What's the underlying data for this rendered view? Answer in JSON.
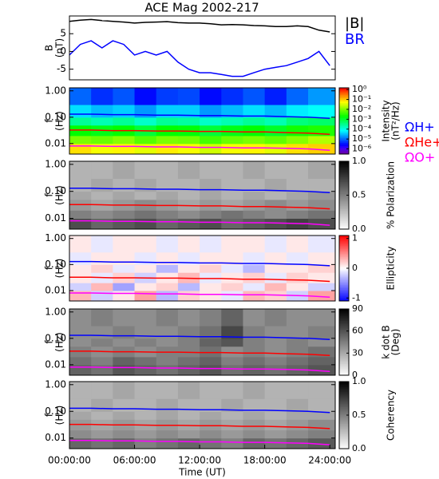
{
  "chart_data": [
    {
      "type": "line",
      "title": "ACE Mag 2002-217",
      "ylabel": [
        "B",
        "(nT)"
      ],
      "x": [
        0,
        1,
        2,
        3,
        4,
        5,
        6,
        7,
        8,
        9,
        10,
        11,
        12,
        13,
        14,
        15,
        16,
        17,
        18,
        19,
        20,
        21,
        22,
        23,
        24
      ],
      "xlim": [
        0,
        24.5
      ],
      "ylim": [
        -8,
        10
      ],
      "yticks": [
        -5,
        0,
        5
      ],
      "series": [
        {
          "name": "|B|",
          "color": "#000000",
          "values": [
            8.5,
            8.8,
            9,
            8.7,
            8.5,
            8.3,
            8,
            8.2,
            8.3,
            8.4,
            8.1,
            8,
            8,
            7.8,
            7.5,
            7.6,
            7.5,
            7.3,
            7.2,
            7,
            7,
            7.2,
            7,
            6,
            5.5
          ]
        },
        {
          "name": "BR",
          "color": "#0000ff",
          "values": [
            -1,
            2,
            3,
            1,
            3,
            2,
            -1,
            0,
            -1,
            0,
            -3,
            -5,
            -6,
            -6,
            -6.5,
            -7,
            -7,
            -6,
            -5,
            -4.5,
            -4,
            -3,
            -2,
            0,
            -4
          ]
        }
      ]
    },
    {
      "type": "heatmap",
      "ylabel": [
        "f",
        "(Hz)"
      ],
      "zlabel": [
        "Intensity",
        "(nT²/Hz)"
      ],
      "colormap": "rainbow",
      "zlog": true,
      "ylog": true,
      "xlim": [
        0,
        24.5
      ],
      "ylim": [
        0.004,
        1.3
      ],
      "yticks": [
        {
          "value": 1,
          "label": "1.00"
        },
        {
          "value": 0.1,
          "label": "0.10"
        },
        {
          "value": 0.01,
          "label": "0.01"
        }
      ],
      "zlim": [
        3e-07,
        1.5
      ],
      "zticks": [
        {
          "value": 1,
          "label": "10⁰"
        },
        {
          "value": 0.1,
          "label": "10⁻¹"
        },
        {
          "value": 0.01,
          "label": "10⁻²"
        },
        {
          "value": 0.001,
          "label": "10⁻³"
        },
        {
          "value": 0.0001,
          "label": "10⁻⁴"
        },
        {
          "value": 1e-05,
          "label": "10⁻⁵"
        },
        {
          "value": 1e-06,
          "label": "10⁻⁶"
        }
      ],
      "xbins": [
        0,
        2,
        4,
        6,
        8,
        10,
        12,
        14,
        16,
        18,
        20,
        22,
        24,
        24.5
      ],
      "ybins": [
        0.004,
        0.01,
        0.02,
        0.05,
        0.1,
        0.3,
        1.3
      ],
      "z": [
        [
          0.08,
          0.05,
          0.06,
          0.04,
          0.07,
          0.05,
          0.03,
          0.05,
          0.06,
          0.04,
          0.08,
          0.1,
          0.1
        ],
        [
          0.01,
          0.008,
          0.012,
          0.006,
          0.01,
          0.009,
          0.005,
          0.008,
          0.01,
          0.007,
          0.012,
          0.02,
          0.02
        ],
        [
          0.002,
          0.0015,
          0.002,
          0.001,
          0.002,
          0.0018,
          0.001,
          0.0015,
          0.002,
          0.0012,
          0.0025,
          0.003,
          0.003
        ],
        [
          0.0003,
          0.0002,
          0.0003,
          0.00015,
          0.0003,
          0.00025,
          0.00015,
          0.0002,
          0.0003,
          0.0002,
          0.0004,
          0.0005,
          0.0005
        ],
        [
          5e-05,
          3e-05,
          4e-05,
          2e-05,
          4e-05,
          4e-05,
          2e-05,
          3e-05,
          5e-05,
          3e-05,
          6e-05,
          8e-05,
          8e-05
        ],
        [
          1e-05,
          5e-06,
          8e-06,
          3e-06,
          6e-06,
          7e-06,
          3e-06,
          5e-06,
          8e-06,
          4e-06,
          1e-05,
          2e-05,
          2e-05
        ]
      ],
      "x": [
        0,
        2,
        4,
        6,
        8,
        10,
        12,
        14,
        16,
        18,
        20,
        22,
        24
      ],
      "series": [
        {
          "name": "ΩH+",
          "color": "#0000ff",
          "values": [
            0.13,
            0.13,
            0.125,
            0.125,
            0.12,
            0.12,
            0.115,
            0.115,
            0.11,
            0.11,
            0.105,
            0.1,
            0.09
          ]
        },
        {
          "name": "ΩHe+",
          "color": "#ff0000",
          "values": [
            0.0325,
            0.0325,
            0.031,
            0.031,
            0.03,
            0.03,
            0.029,
            0.029,
            0.0275,
            0.0275,
            0.026,
            0.025,
            0.0225
          ]
        },
        {
          "name": "ΩO+",
          "color": "#ff00ff",
          "values": [
            0.0081,
            0.0081,
            0.0078,
            0.0078,
            0.0075,
            0.0075,
            0.0072,
            0.0072,
            0.0069,
            0.0069,
            0.0066,
            0.0063,
            0.0056
          ]
        }
      ]
    },
    {
      "type": "heatmap",
      "ylabel": [
        "f",
        "(Hz)"
      ],
      "zlabel": [
        "% Polarization"
      ],
      "colormap": "gray",
      "ylog": true,
      "xlim": [
        0,
        24.5
      ],
      "ylim": [
        0.004,
        1.3
      ],
      "yticks": [
        {
          "value": 1,
          "label": "1.00"
        },
        {
          "value": 0.1,
          "label": "0.10"
        },
        {
          "value": 0.01,
          "label": "0.01"
        }
      ],
      "zlim": [
        0,
        1
      ],
      "zticks": [
        {
          "value": 0,
          "label": "0.0"
        },
        {
          "value": 0.5,
          "label": "0.5"
        },
        {
          "value": 1,
          "label": "1.0"
        }
      ],
      "xbins": [
        0,
        2,
        4,
        6,
        8,
        10,
        12,
        14,
        16,
        18,
        20,
        22,
        24,
        24.5
      ],
      "ybins": [
        0.004,
        0.01,
        0.02,
        0.05,
        0.1,
        0.3,
        1.3
      ],
      "z": [
        [
          0.7,
          0.6,
          0.65,
          0.7,
          0.6,
          0.65,
          0.7,
          0.6,
          0.65,
          0.7,
          0.75,
          0.7,
          0.7
        ],
        [
          0.5,
          0.45,
          0.5,
          0.55,
          0.5,
          0.45,
          0.5,
          0.55,
          0.5,
          0.45,
          0.5,
          0.55,
          0.55
        ],
        [
          0.4,
          0.35,
          0.4,
          0.45,
          0.4,
          0.35,
          0.4,
          0.35,
          0.4,
          0.45,
          0.4,
          0.45,
          0.45
        ],
        [
          0.35,
          0.3,
          0.35,
          0.3,
          0.35,
          0.3,
          0.35,
          0.3,
          0.35,
          0.3,
          0.35,
          0.4,
          0.4
        ],
        [
          0.3,
          0.35,
          0.3,
          0.35,
          0.3,
          0.3,
          0.35,
          0.3,
          0.3,
          0.35,
          0.3,
          0.3,
          0.3
        ],
        [
          0.3,
          0.3,
          0.35,
          0.3,
          0.3,
          0.35,
          0.3,
          0.3,
          0.35,
          0.3,
          0.3,
          0.35,
          0.35
        ]
      ]
    },
    {
      "type": "heatmap",
      "ylabel": [
        "f",
        "(Hz)"
      ],
      "zlabel": [
        "Ellipticity"
      ],
      "colormap": "bwr",
      "ylog": true,
      "xlim": [
        0,
        24.5
      ],
      "ylim": [
        0.004,
        1.3
      ],
      "yticks": [
        {
          "value": 1,
          "label": "1.00"
        },
        {
          "value": 0.1,
          "label": "0.10"
        },
        {
          "value": 0.01,
          "label": "0.01"
        }
      ],
      "zlim": [
        -1.1,
        1.1
      ],
      "zticks": [
        -1,
        0,
        1
      ],
      "xbins": [
        0,
        2,
        4,
        6,
        8,
        10,
        12,
        14,
        16,
        18,
        20,
        22,
        24,
        24.5
      ],
      "ybins": [
        0.004,
        0.01,
        0.02,
        0.05,
        0.1,
        0.3,
        1.3
      ],
      "z": [
        [
          0.3,
          -0.2,
          0.1,
          0.4,
          -0.3,
          0.2,
          0.1,
          -0.1,
          0.3,
          0.2,
          -0.2,
          0.4,
          0.4
        ],
        [
          -0.2,
          0.3,
          -0.4,
          0.1,
          0.2,
          -0.3,
          0.1,
          0.2,
          -0.1,
          0.3,
          0.1,
          -0.2,
          -0.2
        ],
        [
          0.1,
          -0.1,
          0.2,
          -0.2,
          0.1,
          0.3,
          -0.1,
          0.1,
          0.2,
          -0.1,
          0.2,
          0.1,
          0.1
        ],
        [
          0.1,
          0.2,
          -0.1,
          0.1,
          -0.3,
          0.1,
          0.2,
          -0.1,
          -0.3,
          0.1,
          0.1,
          0.2,
          0.2
        ],
        [
          -0.1,
          0.1,
          0.1,
          -0.1,
          0.1,
          -0.1,
          0.1,
          0.1,
          -0.1,
          0.1,
          -0.1,
          0.1,
          0.1
        ],
        [
          0.1,
          -0.1,
          0.1,
          0.1,
          -0.1,
          0.1,
          -0.1,
          0.1,
          0.1,
          -0.1,
          0.1,
          -0.1,
          -0.1
        ]
      ]
    },
    {
      "type": "heatmap",
      "ylabel": [
        "f",
        "(Hz)"
      ],
      "zlabel": [
        "k dot B",
        "(Deg)"
      ],
      "colormap": "gray",
      "ylog": true,
      "xlim": [
        0,
        24.5
      ],
      "ylim": [
        0.004,
        1.3
      ],
      "yticks": [
        {
          "value": 1,
          "label": "1.00"
        },
        {
          "value": 0.1,
          "label": "0.10"
        },
        {
          "value": 0.01,
          "label": "0.01"
        }
      ],
      "zlim": [
        0,
        90
      ],
      "zticks": [
        0,
        30,
        60,
        90
      ],
      "xbins": [
        0,
        2,
        4,
        6,
        8,
        10,
        12,
        14,
        16,
        18,
        20,
        22,
        24,
        24.5
      ],
      "ybins": [
        0.004,
        0.01,
        0.02,
        0.05,
        0.1,
        0.3,
        1.3
      ],
      "z": [
        [
          55,
          50,
          60,
          55,
          50,
          55,
          60,
          50,
          55,
          50,
          55,
          60,
          60
        ],
        [
          50,
          45,
          55,
          50,
          45,
          50,
          55,
          45,
          50,
          45,
          50,
          55,
          55
        ],
        [
          45,
          40,
          45,
          40,
          45,
          45,
          50,
          40,
          45,
          40,
          45,
          50,
          50
        ],
        [
          40,
          45,
          40,
          45,
          40,
          45,
          55,
          60,
          45,
          40,
          45,
          40,
          40
        ],
        [
          40,
          40,
          45,
          40,
          40,
          45,
          50,
          65,
          45,
          40,
          40,
          45,
          45
        ],
        [
          40,
          45,
          40,
          40,
          45,
          40,
          45,
          55,
          40,
          45,
          40,
          40,
          40
        ]
      ]
    },
    {
      "type": "heatmap",
      "ylabel": [
        "f",
        "(Hz)"
      ],
      "zlabel": [
        "Coherency"
      ],
      "colormap": "gray",
      "ylog": true,
      "xlim": [
        0,
        24.5
      ],
      "ylim": [
        0.004,
        1.3
      ],
      "yticks": [
        {
          "value": 1,
          "label": "1.00"
        },
        {
          "value": 0.1,
          "label": "0.10"
        },
        {
          "value": 0.01,
          "label": "0.01"
        }
      ],
      "zlim": [
        0,
        1
      ],
      "zticks": [
        {
          "value": 0,
          "label": "0.0"
        },
        {
          "value": 0.5,
          "label": "0.5"
        },
        {
          "value": 1,
          "label": "1.0"
        }
      ],
      "xbins": [
        0,
        2,
        4,
        6,
        8,
        10,
        12,
        14,
        16,
        18,
        20,
        22,
        24,
        24.5
      ],
      "ybins": [
        0.004,
        0.01,
        0.02,
        0.05,
        0.1,
        0.3,
        1.3
      ],
      "z": [
        [
          0.6,
          0.55,
          0.6,
          0.5,
          0.55,
          0.6,
          0.55,
          0.5,
          0.6,
          0.55,
          0.6,
          0.65,
          0.65
        ],
        [
          0.45,
          0.4,
          0.45,
          0.4,
          0.45,
          0.4,
          0.45,
          0.4,
          0.45,
          0.4,
          0.45,
          0.5,
          0.5
        ],
        [
          0.4,
          0.35,
          0.4,
          0.35,
          0.4,
          0.35,
          0.4,
          0.35,
          0.4,
          0.35,
          0.4,
          0.45,
          0.45
        ],
        [
          0.35,
          0.3,
          0.35,
          0.3,
          0.35,
          0.3,
          0.35,
          0.3,
          0.35,
          0.3,
          0.35,
          0.35,
          0.35
        ],
        [
          0.3,
          0.35,
          0.3,
          0.3,
          0.35,
          0.3,
          0.3,
          0.35,
          0.3,
          0.3,
          0.35,
          0.3,
          0.3
        ],
        [
          0.3,
          0.3,
          0.35,
          0.3,
          0.3,
          0.35,
          0.3,
          0.3,
          0.35,
          0.3,
          0.3,
          0.3,
          0.3
        ]
      ],
      "xlabel": "Time (UT)",
      "xticks": [
        {
          "value": 0,
          "label": "00:00:00"
        },
        {
          "value": 6,
          "label": "06:00:00"
        },
        {
          "value": 12,
          "label": "12:00:00"
        },
        {
          "value": 18,
          "label": "18:00:00"
        },
        {
          "value": 24,
          "label": "24:00:00"
        }
      ]
    }
  ]
}
